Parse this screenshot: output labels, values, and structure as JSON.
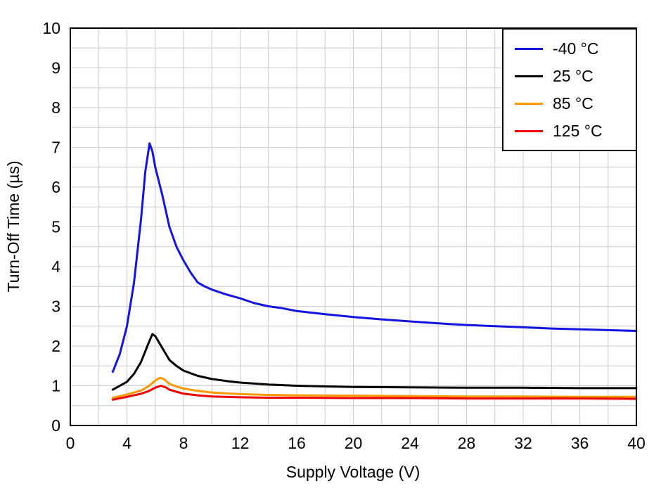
{
  "chart_data": {
    "type": "line",
    "title": "",
    "xlabel": "Supply Voltage (V)",
    "ylabel": "Turn-Off Time (µs)",
    "xlim": [
      0,
      40
    ],
    "ylim": [
      0,
      10
    ],
    "x_tick_step": 4,
    "y_tick_step": 1,
    "x_grid_step": 2,
    "y_grid_step": 0.5,
    "grid": true,
    "legend_position": "top-right",
    "colors": {
      "grid": "#cccccc",
      "axis": "#000000",
      "background": "#ffffff"
    },
    "series": [
      {
        "name": "minus40C",
        "label": "-40 °C",
        "color": "#1414e0",
        "points": [
          [
            3,
            1.35
          ],
          [
            3.5,
            1.8
          ],
          [
            4,
            2.5
          ],
          [
            4.5,
            3.6
          ],
          [
            5,
            5.2
          ],
          [
            5.3,
            6.4
          ],
          [
            5.6,
            7.1
          ],
          [
            5.8,
            6.9
          ],
          [
            6,
            6.5
          ],
          [
            6.5,
            5.8
          ],
          [
            7,
            5.0
          ],
          [
            7.5,
            4.5
          ],
          [
            8,
            4.15
          ],
          [
            8.5,
            3.85
          ],
          [
            9,
            3.6
          ],
          [
            9.5,
            3.5
          ],
          [
            10,
            3.42
          ],
          [
            11,
            3.3
          ],
          [
            12,
            3.2
          ],
          [
            13,
            3.08
          ],
          [
            14,
            3.0
          ],
          [
            15,
            2.95
          ],
          [
            16,
            2.88
          ],
          [
            18,
            2.8
          ],
          [
            20,
            2.73
          ],
          [
            22,
            2.67
          ],
          [
            24,
            2.62
          ],
          [
            26,
            2.57
          ],
          [
            28,
            2.53
          ],
          [
            30,
            2.5
          ],
          [
            32,
            2.47
          ],
          [
            34,
            2.44
          ],
          [
            36,
            2.42
          ],
          [
            38,
            2.4
          ],
          [
            40,
            2.38
          ]
        ]
      },
      {
        "name": "25C",
        "label": "25 °C",
        "color": "#000000",
        "points": [
          [
            3,
            0.9
          ],
          [
            4,
            1.1
          ],
          [
            4.5,
            1.3
          ],
          [
            5,
            1.6
          ],
          [
            5.5,
            2.05
          ],
          [
            5.8,
            2.3
          ],
          [
            6,
            2.25
          ],
          [
            6.5,
            1.95
          ],
          [
            7,
            1.65
          ],
          [
            7.5,
            1.5
          ],
          [
            8,
            1.38
          ],
          [
            9,
            1.25
          ],
          [
            10,
            1.17
          ],
          [
            11,
            1.12
          ],
          [
            12,
            1.08
          ],
          [
            14,
            1.03
          ],
          [
            16,
            1.0
          ],
          [
            20,
            0.97
          ],
          [
            24,
            0.96
          ],
          [
            28,
            0.95
          ],
          [
            32,
            0.95
          ],
          [
            36,
            0.94
          ],
          [
            40,
            0.94
          ]
        ]
      },
      {
        "name": "85C",
        "label": "85 °C",
        "color": "#ff9900",
        "points": [
          [
            3,
            0.7
          ],
          [
            4,
            0.78
          ],
          [
            5,
            0.88
          ],
          [
            5.5,
            0.98
          ],
          [
            6,
            1.13
          ],
          [
            6.3,
            1.2
          ],
          [
            6.6,
            1.17
          ],
          [
            7,
            1.05
          ],
          [
            7.5,
            0.98
          ],
          [
            8,
            0.93
          ],
          [
            9,
            0.87
          ],
          [
            10,
            0.83
          ],
          [
            12,
            0.79
          ],
          [
            14,
            0.77
          ],
          [
            16,
            0.76
          ],
          [
            20,
            0.75
          ],
          [
            24,
            0.74
          ],
          [
            28,
            0.73
          ],
          [
            32,
            0.73
          ],
          [
            36,
            0.72
          ],
          [
            40,
            0.72
          ]
        ]
      },
      {
        "name": "125C",
        "label": "125 °C",
        "color": "#ee0000",
        "points": [
          [
            3,
            0.65
          ],
          [
            4,
            0.72
          ],
          [
            5,
            0.8
          ],
          [
            5.5,
            0.86
          ],
          [
            6,
            0.95
          ],
          [
            6.4,
            1.0
          ],
          [
            6.8,
            0.95
          ],
          [
            7,
            0.9
          ],
          [
            7.5,
            0.85
          ],
          [
            8,
            0.8
          ],
          [
            9,
            0.76
          ],
          [
            10,
            0.73
          ],
          [
            12,
            0.71
          ],
          [
            14,
            0.7
          ],
          [
            16,
            0.7
          ],
          [
            20,
            0.69
          ],
          [
            24,
            0.69
          ],
          [
            28,
            0.68
          ],
          [
            32,
            0.68
          ],
          [
            36,
            0.68
          ],
          [
            40,
            0.67
          ]
        ]
      }
    ]
  }
}
